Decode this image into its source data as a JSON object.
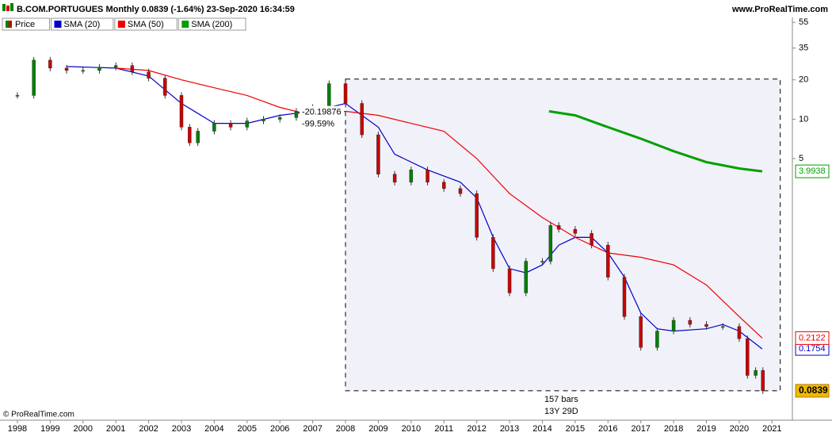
{
  "chart_data": {
    "type": "candlestick",
    "title": "B.COM.PORTUGUES Monthly 0.0839 (-1.64%) 23-Sep-2020 16:34:59",
    "source": "www.ProRealTime.com",
    "footer": "© ProRealTime.com",
    "log_scale": true,
    "xlim": [
      1997.47,
      2021.62
    ],
    "xticks": [
      1998,
      1999,
      2000,
      2001,
      2002,
      2003,
      2004,
      2005,
      2006,
      2007,
      2008,
      2009,
      2010,
      2011,
      2012,
      2013,
      2014,
      2015,
      2016,
      2017,
      2018,
      2019,
      2020,
      2021
    ],
    "ylim": [
      0.05,
      60
    ],
    "yticks": [
      55,
      35,
      20,
      10,
      5
    ],
    "up_color": "#008000",
    "down_color": "#cc0000",
    "series": [
      {
        "name": "Price",
        "color": "#008000",
        "x": [
          1998.0,
          1998.5,
          1999.0,
          1999.5,
          2000.0,
          2000.5,
          2001.0,
          2001.5,
          2002.0,
          2002.5,
          2003.0,
          2003.25,
          2003.5,
          2004.0,
          2004.5,
          2005.0,
          2005.5,
          2006.0,
          2006.5,
          2007.0,
          2007.5,
          2008.0,
          2008.5,
          2009.0,
          2009.5,
          2010.0,
          2010.5,
          2011.0,
          2011.5,
          2012.0,
          2012.5,
          2013.0,
          2013.5,
          2014.0,
          2014.25,
          2014.5,
          2015.0,
          2015.5,
          2016.0,
          2016.5,
          2017.0,
          2017.5,
          2018.0,
          2018.5,
          2019.0,
          2019.5,
          2020.0,
          2020.25,
          2020.5,
          2020.72
        ],
        "values": [
          15.2,
          28.3,
          24.6,
          23.6,
          23.6,
          25.0,
          25.7,
          23.0,
          20.6,
          15.2,
          8.7,
          6.6,
          8.1,
          9.3,
          8.7,
          9.7,
          10.0,
          10.3,
          11.5,
          12.3,
          18.7,
          13.2,
          7.6,
          3.8,
          3.3,
          4.1,
          3.3,
          2.95,
          2.7,
          1.25,
          0.72,
          0.47,
          0.82,
          0.82,
          1.54,
          1.44,
          1.34,
          1.09,
          0.62,
          0.31,
          0.18,
          0.24,
          0.29,
          0.27,
          0.26,
          0.26,
          0.21,
          0.11,
          0.12,
          0.0839
        ]
      },
      {
        "name": "SMA (20)",
        "color": "#0000cc",
        "x": [
          1999.5,
          2001.0,
          2002.0,
          2003.0,
          2004.0,
          2005.0,
          2006.0,
          2007.0,
          2008.0,
          2009.0,
          2009.5,
          2010.5,
          2011.5,
          2012.0,
          2012.5,
          2013.0,
          2013.5,
          2014.0,
          2014.5,
          2015.0,
          2015.5,
          2016.0,
          2016.5,
          2017.0,
          2017.5,
          2018.0,
          2019.0,
          2019.5,
          2020.0,
          2020.7
        ],
        "values": [
          25.3,
          24.6,
          21.4,
          13.2,
          9.3,
          9.3,
          10.7,
          11.5,
          13.2,
          8.7,
          5.4,
          4.1,
          3.3,
          2.5,
          1.25,
          0.72,
          0.67,
          0.77,
          1.09,
          1.25,
          1.25,
          0.95,
          0.62,
          0.33,
          0.25,
          0.24,
          0.25,
          0.27,
          0.24,
          0.1754
        ]
      },
      {
        "name": "SMA (50)",
        "color": "#ee0000",
        "x": [
          2001.0,
          2002.0,
          2003.0,
          2004.0,
          2005.0,
          2006.0,
          2007.0,
          2008.0,
          2009.0,
          2010.0,
          2011.0,
          2012.0,
          2013.0,
          2014.0,
          2015.0,
          2016.0,
          2017.0,
          2018.0,
          2019.0,
          2020.0,
          2020.7
        ],
        "values": [
          24.6,
          23.6,
          20.0,
          17.4,
          15.2,
          12.3,
          10.7,
          11.5,
          10.7,
          9.3,
          8.1,
          5.0,
          2.7,
          1.77,
          1.25,
          0.95,
          0.88,
          0.77,
          0.54,
          0.31,
          0.2122
        ]
      },
      {
        "name": "SMA (200)",
        "color": "#00a000",
        "x": [
          2014.2,
          2015.0,
          2016.0,
          2017.0,
          2018.0,
          2019.0,
          2020.0,
          2020.7
        ],
        "values": [
          11.5,
          10.7,
          8.7,
          7.1,
          5.7,
          4.7,
          4.2,
          3.9938
        ]
      }
    ],
    "measure": {
      "x": [
        2008.0,
        2021.25
      ],
      "y": [
        20.28,
        0.0839
      ],
      "change": "-20.19876",
      "change_pct": "-99.59%",
      "bars": "157 bars",
      "duration": "13Y 29D"
    }
  }
}
